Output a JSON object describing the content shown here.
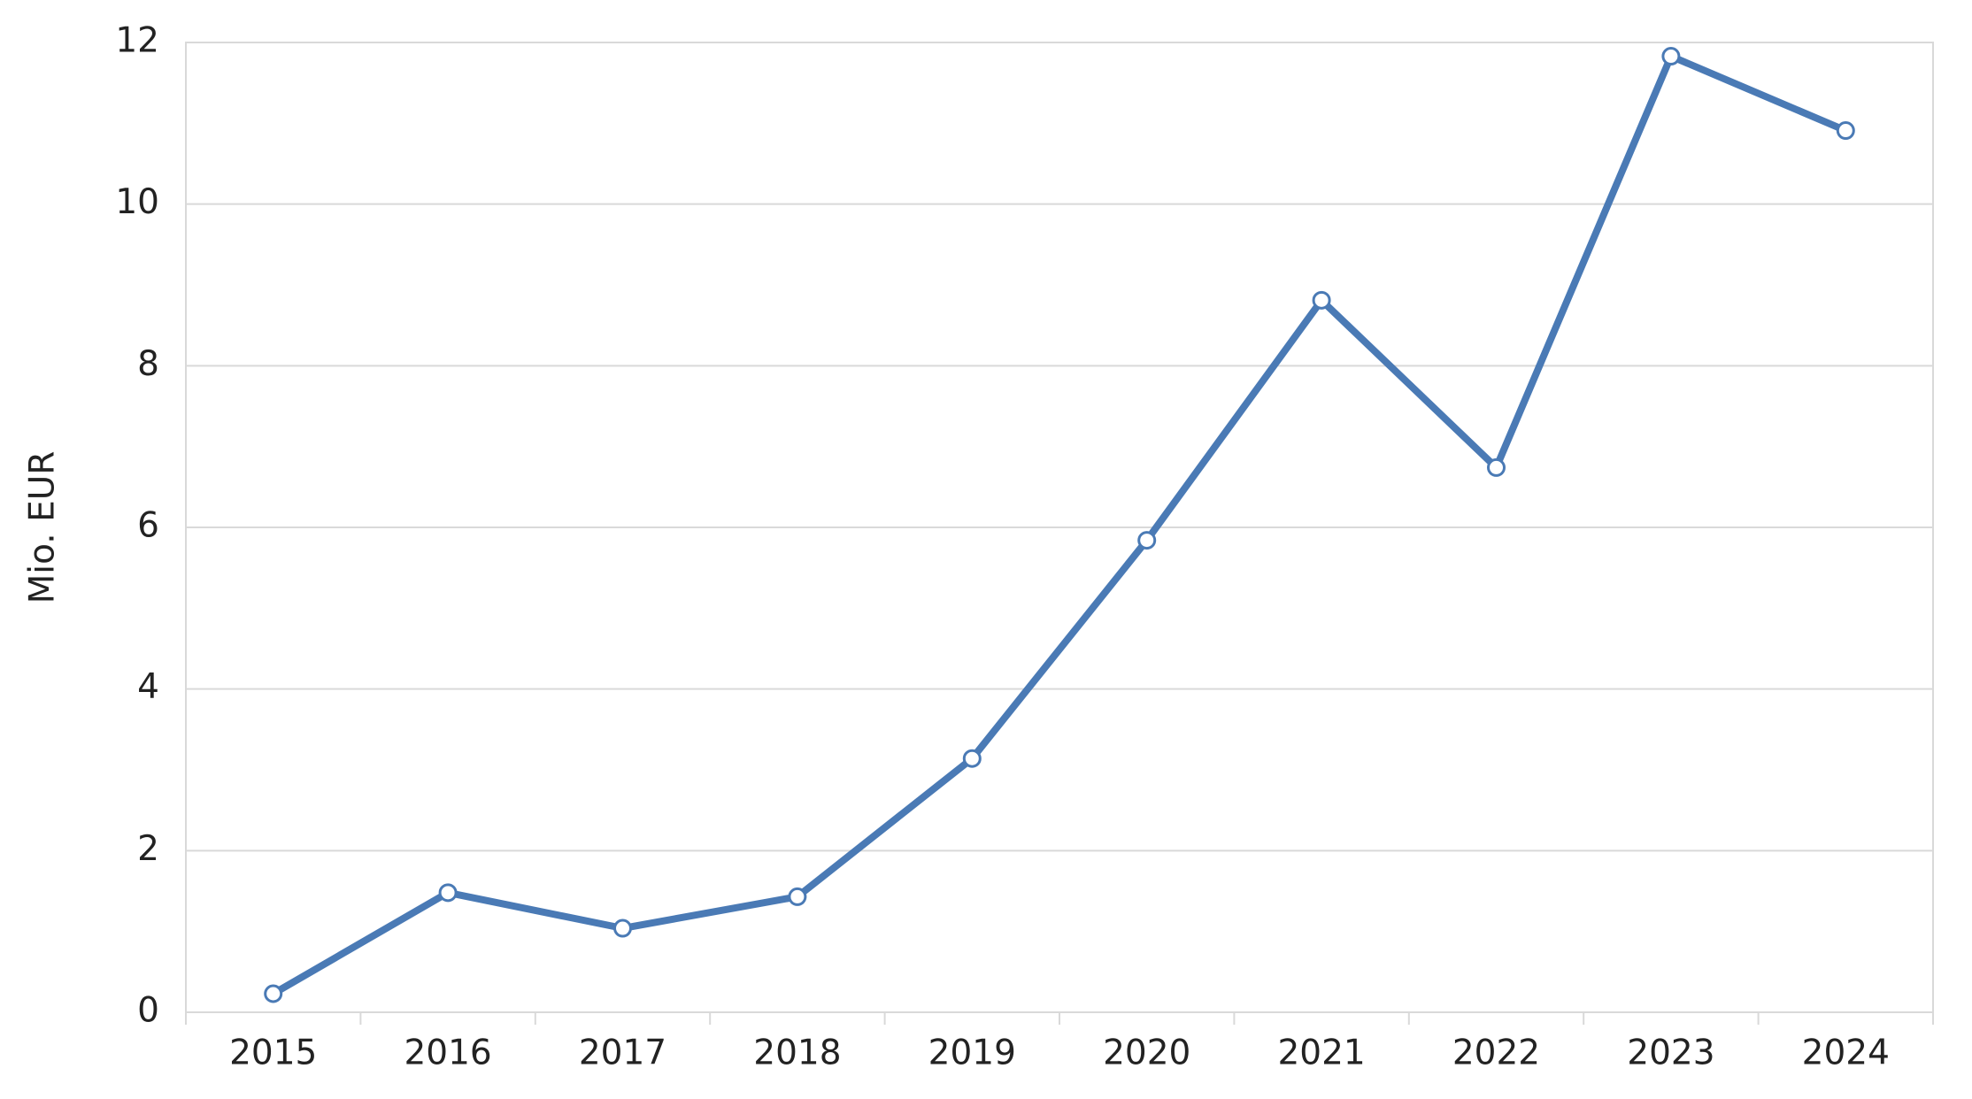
{
  "chart_data": {
    "type": "line",
    "y_label": "Mio. EUR",
    "categories": [
      "2015",
      "2016",
      "2017",
      "2018",
      "2019",
      "2020",
      "2021",
      "2022",
      "2023",
      "2024"
    ],
    "values": [
      0.23,
      1.48,
      1.04,
      1.43,
      3.14,
      5.84,
      8.81,
      6.74,
      11.83,
      10.91
    ],
    "color": "#4a7ab5",
    "ylim": [
      0,
      12
    ],
    "yticks": [
      0,
      2,
      4,
      6,
      8,
      10,
      12
    ],
    "grid": true
  }
}
